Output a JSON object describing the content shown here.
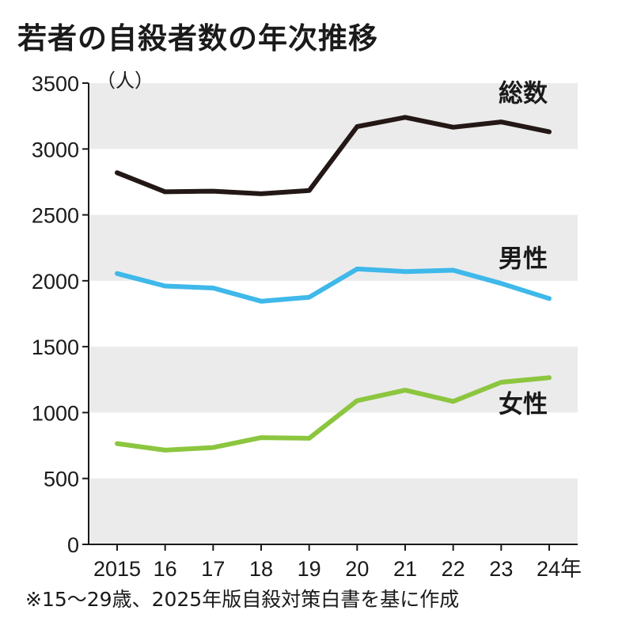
{
  "title": "若者の自殺者数の年次推移",
  "footnote": "※15〜29歳、2025年版自殺対策白書を基に作成",
  "chart_data": {
    "type": "line",
    "title": "若者の自殺者数の年次推移",
    "ylabel": "（人）",
    "xlabel": "年",
    "categories": [
      "2015",
      "16",
      "17",
      "18",
      "19",
      "20",
      "21",
      "22",
      "23",
      "24年"
    ],
    "ylim": [
      0,
      3500
    ],
    "yticks": [
      0,
      500,
      1000,
      1500,
      2000,
      2500,
      3000,
      3500
    ],
    "grid": "alternating horizontal bands",
    "series": [
      {
        "name": "総数",
        "color": "#231815",
        "values": [
          2820,
          2675,
          2680,
          2660,
          2685,
          3170,
          3240,
          3165,
          3205,
          3130
        ]
      },
      {
        "name": "男性",
        "color": "#3fb8ea",
        "values": [
          2055,
          1960,
          1945,
          1845,
          1875,
          2090,
          2070,
          2080,
          1980,
          1865
        ]
      },
      {
        "name": "女性",
        "color": "#8cc63f",
        "values": [
          765,
          715,
          735,
          810,
          805,
          1090,
          1170,
          1085,
          1230,
          1265
        ]
      }
    ]
  }
}
